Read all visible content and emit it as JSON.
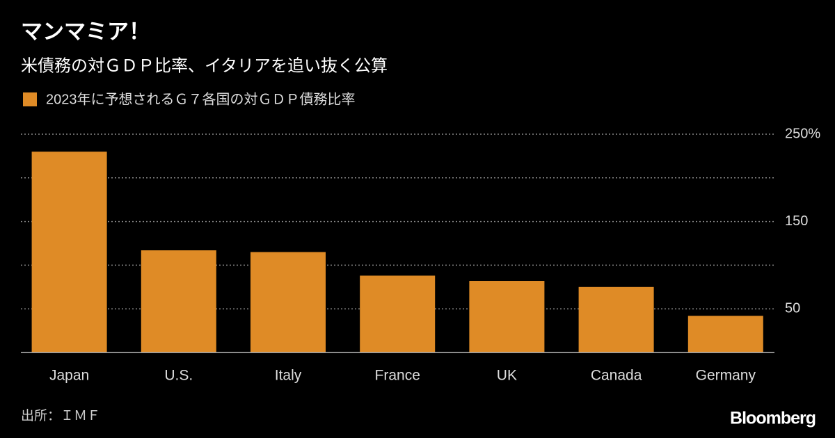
{
  "chart_data": {
    "type": "bar",
    "title": "マンマミア！",
    "subtitle": "米債務の対ＧＤＰ比率、イタリアを追い抜く公算",
    "series": [
      {
        "name": "2023年に予想されるＧ７各国の対ＧＤＰ債務比率",
        "color": "#df8b26",
        "values": [
          230,
          117,
          115,
          88,
          82,
          75,
          42
        ]
      }
    ],
    "categories": [
      "Japan",
      "U.S.",
      "Italy",
      "France",
      "UK",
      "Canada",
      "Germany"
    ],
    "ylim": [
      0,
      250
    ],
    "yticks": [
      50,
      150,
      {
        "value": 250,
        "label": "250%"
      }
    ],
    "gridlines": [
      100,
      200
    ],
    "grid": true,
    "source": "出所：ＩＭＦ",
    "brand": "Bloomberg"
  }
}
